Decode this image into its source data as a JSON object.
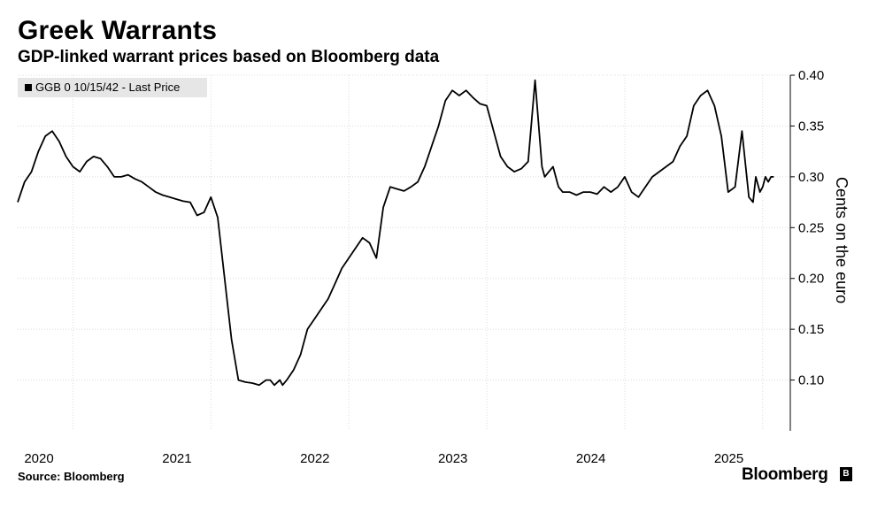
{
  "header": {
    "title": "Greek Warrants",
    "subtitle": "GDP-linked warrant prices based on Bloomberg data"
  },
  "footer": {
    "source": "Source: Bloomberg",
    "brand": "Bloomberg",
    "brand_logo": "B"
  },
  "chart_data": {
    "type": "line",
    "title": "Greek Warrants",
    "subtitle": "GDP-linked warrant prices based on Bloomberg data",
    "ylabel": "Cents on the euro",
    "xlabel": "",
    "ylim": [
      0.05,
      0.4
    ],
    "yticks": [
      "0.10",
      "0.15",
      "0.20",
      "0.25",
      "0.30",
      "0.35",
      "0.40"
    ],
    "xticks": [
      "2020",
      "2021",
      "2022",
      "2023",
      "2024",
      "2025"
    ],
    "xlim": [
      2019.6,
      2025.2
    ],
    "grid": true,
    "legend_position": "top-left",
    "series": [
      {
        "name": "GGB 0 10/15/42 - Last Price",
        "color": "#000000",
        "x": [
          2019.6,
          2019.65,
          2019.7,
          2019.75,
          2019.8,
          2019.85,
          2019.9,
          2019.95,
          2020.0,
          2020.05,
          2020.1,
          2020.15,
          2020.2,
          2020.25,
          2020.3,
          2020.35,
          2020.4,
          2020.45,
          2020.5,
          2020.55,
          2020.6,
          2020.65,
          2020.7,
          2020.75,
          2020.8,
          2020.85,
          2020.9,
          2020.95,
          2021.0,
          2021.05,
          2021.1,
          2021.15,
          2021.2,
          2021.25,
          2021.3,
          2021.35,
          2021.4,
          2021.43,
          2021.46,
          2021.5,
          2021.52,
          2021.55,
          2021.6,
          2021.65,
          2021.7,
          2021.75,
          2021.8,
          2021.85,
          2021.9,
          2021.95,
          2022.0,
          2022.05,
          2022.1,
          2022.15,
          2022.2,
          2022.25,
          2022.3,
          2022.35,
          2022.4,
          2022.45,
          2022.5,
          2022.55,
          2022.6,
          2022.65,
          2022.7,
          2022.75,
          2022.8,
          2022.85,
          2022.9,
          2022.95,
          2023.0,
          2023.05,
          2023.1,
          2023.15,
          2023.2,
          2023.25,
          2023.3,
          2023.35,
          2023.4,
          2023.42,
          2023.45,
          2023.48,
          2023.5,
          2023.51,
          2023.52,
          2023.55,
          2023.6,
          2023.65,
          2023.7,
          2023.75,
          2023.8,
          2023.85,
          2023.9,
          2023.95,
          2024.0,
          2024.05,
          2024.1,
          2024.15,
          2024.2,
          2024.25,
          2024.3,
          2024.35,
          2024.4,
          2024.45,
          2024.5,
          2024.55,
          2024.6,
          2024.65,
          2024.7,
          2024.75,
          2024.8,
          2024.85,
          2024.9,
          2024.93,
          2024.95,
          2024.98,
          2025.0,
          2025.02,
          2025.04,
          2025.06,
          2025.08
        ],
        "y": [
          0.275,
          0.295,
          0.305,
          0.325,
          0.34,
          0.345,
          0.335,
          0.32,
          0.31,
          0.305,
          0.315,
          0.32,
          0.318,
          0.31,
          0.3,
          0.3,
          0.302,
          0.298,
          0.295,
          0.29,
          0.285,
          0.282,
          0.28,
          0.278,
          0.276,
          0.275,
          0.262,
          0.265,
          0.28,
          0.26,
          0.2,
          0.14,
          0.1,
          0.098,
          0.097,
          0.095,
          0.1,
          0.1,
          0.095,
          0.1,
          0.095,
          0.1,
          0.11,
          0.125,
          0.15,
          0.16,
          0.17,
          0.18,
          0.195,
          0.21,
          0.22,
          0.23,
          0.24,
          0.235,
          0.22,
          0.27,
          0.29,
          0.288,
          0.286,
          0.29,
          0.295,
          0.31,
          0.33,
          0.35,
          0.375,
          0.385,
          0.38,
          0.385,
          0.378,
          0.372,
          0.37,
          0.345,
          0.32,
          0.31,
          0.305,
          0.308,
          0.315,
          0.395,
          0.31,
          0.3,
          0.305,
          0.31,
          0.3,
          0.295,
          0.29,
          0.285,
          0.285,
          0.282,
          0.285,
          0.285,
          0.283,
          0.29,
          0.285,
          0.29,
          0.3,
          0.285,
          0.28,
          0.29,
          0.3,
          0.305,
          0.31,
          0.315,
          0.33,
          0.34,
          0.37,
          0.38,
          0.385,
          0.37,
          0.34,
          0.285,
          0.29,
          0.345,
          0.28,
          0.275,
          0.3,
          0.285,
          0.29,
          0.3,
          0.295,
          0.3,
          0.3
        ]
      }
    ]
  }
}
